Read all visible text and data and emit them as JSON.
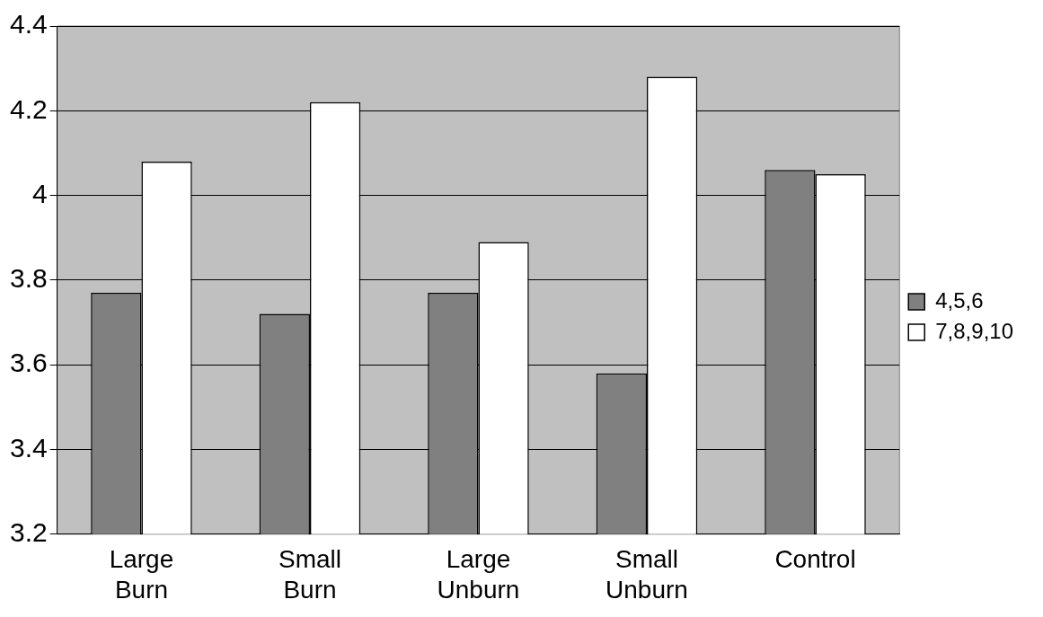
{
  "chart_data": {
    "type": "bar",
    "categories": [
      "Large\nBurn",
      "Small\nBurn",
      "Large\nUnburn",
      "Small\nUnburn",
      "Control"
    ],
    "series": [
      {
        "name": "4,5,6",
        "color": "#808080",
        "values": [
          3.77,
          3.72,
          3.77,
          3.58,
          4.06
        ]
      },
      {
        "name": "7,8,9,10",
        "color": "#ffffff",
        "values": [
          4.08,
          4.22,
          3.89,
          4.28,
          4.05
        ]
      }
    ],
    "ylim": [
      3.2,
      4.4
    ],
    "yticks": [
      3.2,
      3.4,
      3.6,
      3.8,
      {
        "value": 4,
        "label": "4"
      },
      4.2,
      4.4
    ],
    "grid": "y",
    "legend": "right"
  }
}
